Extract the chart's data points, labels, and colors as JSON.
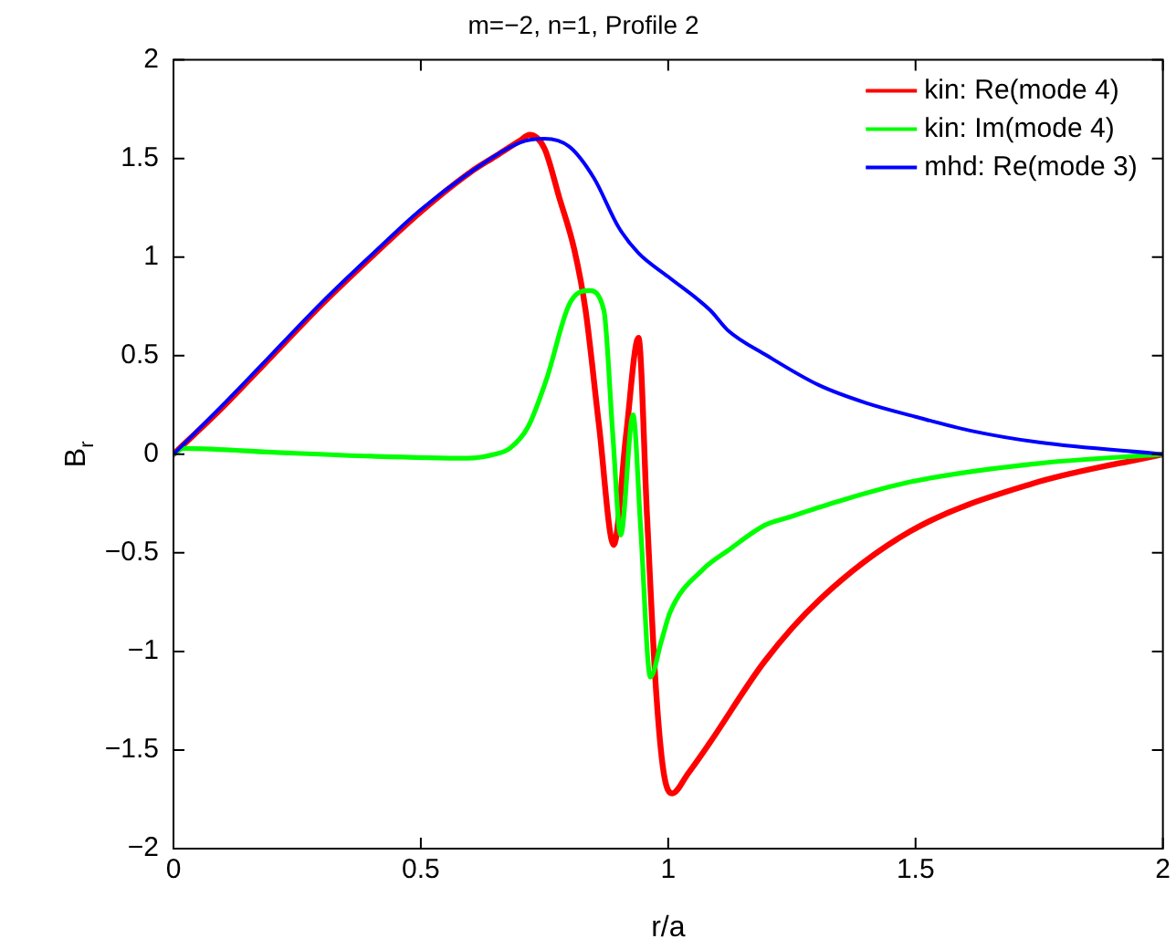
{
  "chart_data": {
    "type": "line",
    "title": "m=−2, n=1, Profile 2",
    "xlabel": "r/a",
    "ylabel": "B$_{r}$",
    "xlim": [
      0,
      2
    ],
    "xticks": [
      0,
      0.5,
      1,
      1.5,
      2
    ],
    "ylim": [
      -2,
      2
    ],
    "yticks": [
      {
        "value": -2,
        "label": "−2"
      },
      {
        "value": -1.5,
        "label": "−1.5"
      },
      {
        "value": -1,
        "label": "−1"
      },
      {
        "value": -0.5,
        "label": "−0.5"
      },
      0,
      0.5,
      1,
      1.5,
      2
    ],
    "grid": false,
    "legend": "top right",
    "marker": "none",
    "line_style": "solid",
    "series": [
      {
        "name": "kin: Re(mode 4)",
        "color": "#ff0000",
        "x": [
          0,
          0.1,
          0.2,
          0.3,
          0.4,
          0.5,
          0.6,
          0.65,
          0.7,
          0.72,
          0.75,
          0.78,
          0.81,
          0.833,
          0.86,
          0.89,
          0.915,
          0.94,
          0.957,
          0.974,
          0.99,
          1.008,
          1.04,
          1.085,
          1.195,
          1.305,
          1.49,
          1.735,
          2
        ],
        "values": [
          0,
          0.24,
          0.5,
          0.76,
          1.0,
          1.23,
          1.43,
          1.51,
          1.59,
          1.62,
          1.55,
          1.3,
          1.04,
          0.73,
          0.15,
          -0.46,
          0.1,
          0.59,
          -0.3,
          -1.14,
          -1.6,
          -1.72,
          -1.62,
          -1.46,
          -1.05,
          -0.74,
          -0.39,
          -0.15,
          0
        ]
      },
      {
        "name": "kin: Im(mode 4)",
        "color": "#00ff00",
        "x": [
          0,
          0.02,
          0.2,
          0.4,
          0.594,
          0.65,
          0.68,
          0.717,
          0.754,
          0.8,
          0.84,
          0.87,
          0.888,
          0.904,
          0.929,
          0.944,
          0.964,
          0.986,
          1.004,
          1.072,
          1.12,
          1.195,
          1.243,
          1.342,
          1.49,
          1.735,
          2
        ],
        "values": [
          0,
          0.03,
          0.01,
          -0.01,
          -0.02,
          0.0,
          0.03,
          0.14,
          0.38,
          0.76,
          0.83,
          0.73,
          0.1,
          -0.41,
          0.2,
          -0.36,
          -1.13,
          -0.95,
          -0.8,
          -0.58,
          -0.49,
          -0.36,
          -0.32,
          -0.24,
          -0.14,
          -0.05,
          0
        ]
      },
      {
        "name": "mhd: Re(mode 3)",
        "color": "#0000ff",
        "x": [
          0,
          0.1,
          0.2,
          0.3,
          0.4,
          0.5,
          0.6,
          0.7,
          0.75,
          0.8,
          0.85,
          0.9,
          0.94,
          1.0,
          1.085,
          1.12,
          1.2,
          1.305,
          1.4,
          1.5,
          1.61,
          1.75,
          2
        ],
        "values": [
          0,
          0.25,
          0.51,
          0.77,
          1.01,
          1.24,
          1.43,
          1.58,
          1.6,
          1.56,
          1.4,
          1.15,
          1.02,
          0.9,
          0.73,
          0.63,
          0.5,
          0.35,
          0.26,
          0.19,
          0.12,
          0.06,
          0
        ]
      }
    ]
  }
}
